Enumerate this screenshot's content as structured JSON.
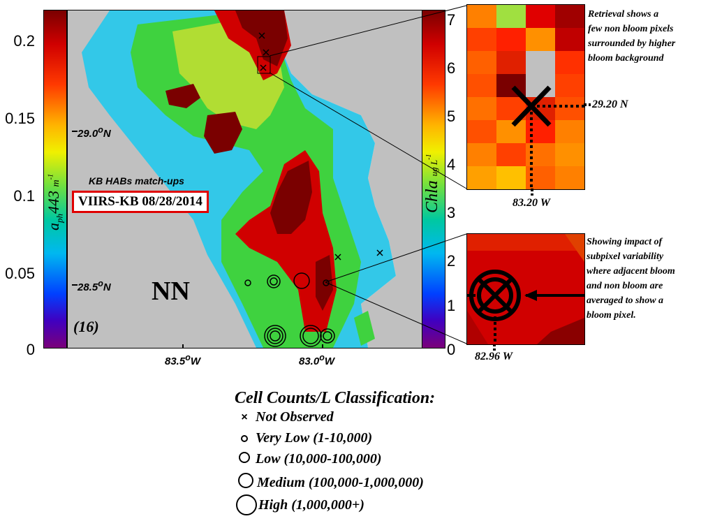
{
  "left_colorbar": {
    "ticks": [
      "0.2",
      "0.15",
      "0.1",
      "0.05",
      "0"
    ],
    "label_main": "a",
    "label_sub": "ph",
    "label_tail": "443",
    "label_unit": "m",
    "label_unit_sup": "-1"
  },
  "right_colorbar": {
    "ticks": [
      "7",
      "6",
      "5",
      "4",
      "3",
      "2",
      "1",
      "0"
    ],
    "label_main": "Chla",
    "label_unit": "ug L",
    "label_unit_sup": "-1"
  },
  "map": {
    "lat_290": "29.0",
    "lat_285": "28.5",
    "lat_suffix": "N",
    "lon_835": "83.5",
    "lon_830": "83.0",
    "lon_suffix": "W",
    "degree_sup": "o",
    "title_small": "KB HABs match-ups",
    "title_box": "VIIRS-KB 08/28/2014",
    "region_label": "NN",
    "panel_number": "(16)"
  },
  "inset_top": {
    "annotation": [
      "Retrieval shows a",
      "few non bloom pixels",
      "surrounded by higher",
      "bloom background"
    ],
    "lat_label": "29.20 N",
    "lon_label": "83.20 W"
  },
  "inset_bottom": {
    "annotation": [
      "Showing impact of",
      "subpixel variability",
      "where adjacent bloom",
      "and non bloom are",
      "averaged to show a",
      "bloom pixel."
    ],
    "lon_label": "82.96 W"
  },
  "legend": {
    "title": "Cell Counts/L Classification:",
    "items": [
      {
        "symbol": "x",
        "label": "Not Observed"
      },
      {
        "symbol": "very-low",
        "label": "Very Low (1-10,000)"
      },
      {
        "symbol": "low",
        "label": "Low (10,000-100,000)"
      },
      {
        "symbol": "medium",
        "label": "Medium (100,000-1,000,000)"
      },
      {
        "symbol": "high",
        "label": "High (1,000,000+)"
      }
    ]
  },
  "colors": {
    "land": "#c0c0c0",
    "bloom_dark": "#7a0000",
    "bloom_red": "#d00000",
    "mid_green": "#3fd23f",
    "low_cyan": "#33c8e8",
    "highlight_box": "#e00000"
  }
}
